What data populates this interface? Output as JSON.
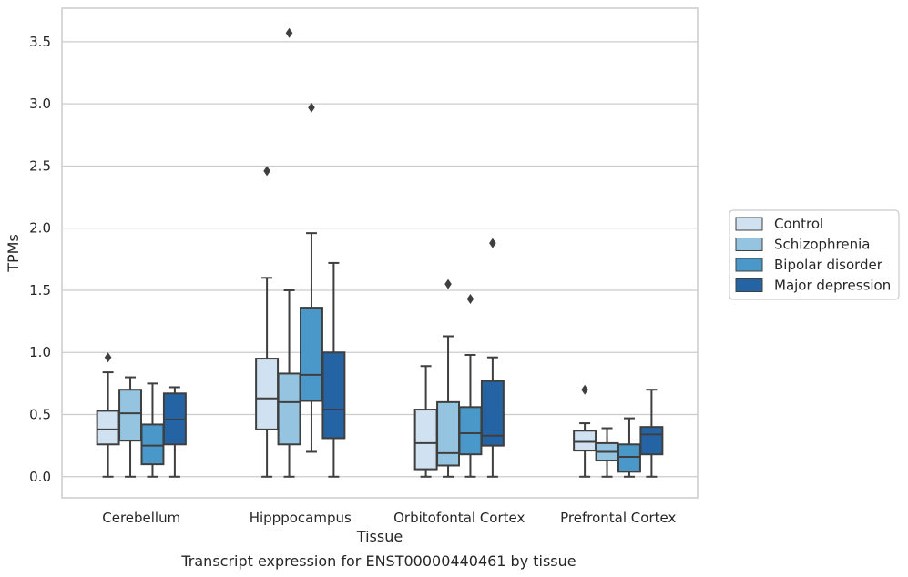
{
  "chart_data": {
    "type": "box",
    "title": "",
    "caption": "Transcript expression for ENST00000440461 by tissue",
    "xlabel": "Tissue",
    "ylabel": "TPMs",
    "ylim": [
      -0.17,
      3.77
    ],
    "yticks": [
      "0.0",
      "0.5",
      "1.0",
      "1.5",
      "2.0",
      "2.5",
      "3.0",
      "3.5"
    ],
    "grid": "horizontal",
    "legend_position": "right",
    "categories": [
      "Cerebellum",
      "Hipppocampus",
      "Orbitofontal Cortex",
      "Prefrontal Cortex"
    ],
    "series": [
      {
        "name": "Control",
        "color": "#d0e1f2",
        "boxes": [
          {
            "whisker_low": 0.0,
            "q1": 0.26,
            "median": 0.38,
            "q3": 0.53,
            "whisker_high": 0.84,
            "outliers": [
              0.96
            ]
          },
          {
            "whisker_low": 0.0,
            "q1": 0.38,
            "median": 0.63,
            "q3": 0.95,
            "whisker_high": 1.6,
            "outliers": [
              2.46
            ]
          },
          {
            "whisker_low": 0.0,
            "q1": 0.06,
            "median": 0.27,
            "q3": 0.54,
            "whisker_high": 0.89,
            "outliers": []
          },
          {
            "whisker_low": 0.0,
            "q1": 0.21,
            "median": 0.28,
            "q3": 0.37,
            "whisker_high": 0.43,
            "outliers": [
              0.7
            ]
          }
        ]
      },
      {
        "name": "Schizophrenia",
        "color": "#94c4df",
        "boxes": [
          {
            "whisker_low": 0.0,
            "q1": 0.29,
            "median": 0.51,
            "q3": 0.7,
            "whisker_high": 0.8,
            "outliers": []
          },
          {
            "whisker_low": 0.0,
            "q1": 0.26,
            "median": 0.6,
            "q3": 0.83,
            "whisker_high": 1.5,
            "outliers": [
              3.57
            ]
          },
          {
            "whisker_low": 0.0,
            "q1": 0.09,
            "median": 0.19,
            "q3": 0.6,
            "whisker_high": 1.13,
            "outliers": [
              1.55
            ]
          },
          {
            "whisker_low": 0.0,
            "q1": 0.13,
            "median": 0.2,
            "q3": 0.27,
            "whisker_high": 0.39,
            "outliers": []
          }
        ]
      },
      {
        "name": "Bipolar disorder",
        "color": "#4a98c9",
        "boxes": [
          {
            "whisker_low": 0.0,
            "q1": 0.1,
            "median": 0.25,
            "q3": 0.42,
            "whisker_high": 0.75,
            "outliers": []
          },
          {
            "whisker_low": 0.2,
            "q1": 0.61,
            "median": 0.82,
            "q3": 1.36,
            "whisker_high": 1.96,
            "outliers": [
              2.97
            ]
          },
          {
            "whisker_low": 0.0,
            "q1": 0.18,
            "median": 0.35,
            "q3": 0.56,
            "whisker_high": 0.98,
            "outliers": [
              1.43
            ]
          },
          {
            "whisker_low": 0.0,
            "q1": 0.04,
            "median": 0.16,
            "q3": 0.26,
            "whisker_high": 0.47,
            "outliers": []
          }
        ]
      },
      {
        "name": "Major depression",
        "color": "#2464a5",
        "boxes": [
          {
            "whisker_low": 0.0,
            "q1": 0.26,
            "median": 0.46,
            "q3": 0.67,
            "whisker_high": 0.72,
            "outliers": []
          },
          {
            "whisker_low": 0.0,
            "q1": 0.31,
            "median": 0.54,
            "q3": 1.0,
            "whisker_high": 1.72,
            "outliers": []
          },
          {
            "whisker_low": 0.0,
            "q1": 0.25,
            "median": 0.33,
            "q3": 0.77,
            "whisker_high": 0.96,
            "outliers": [
              1.88
            ]
          },
          {
            "whisker_low": 0.0,
            "q1": 0.18,
            "median": 0.34,
            "q3": 0.4,
            "whisker_high": 0.7,
            "outliers": []
          }
        ]
      }
    ]
  }
}
